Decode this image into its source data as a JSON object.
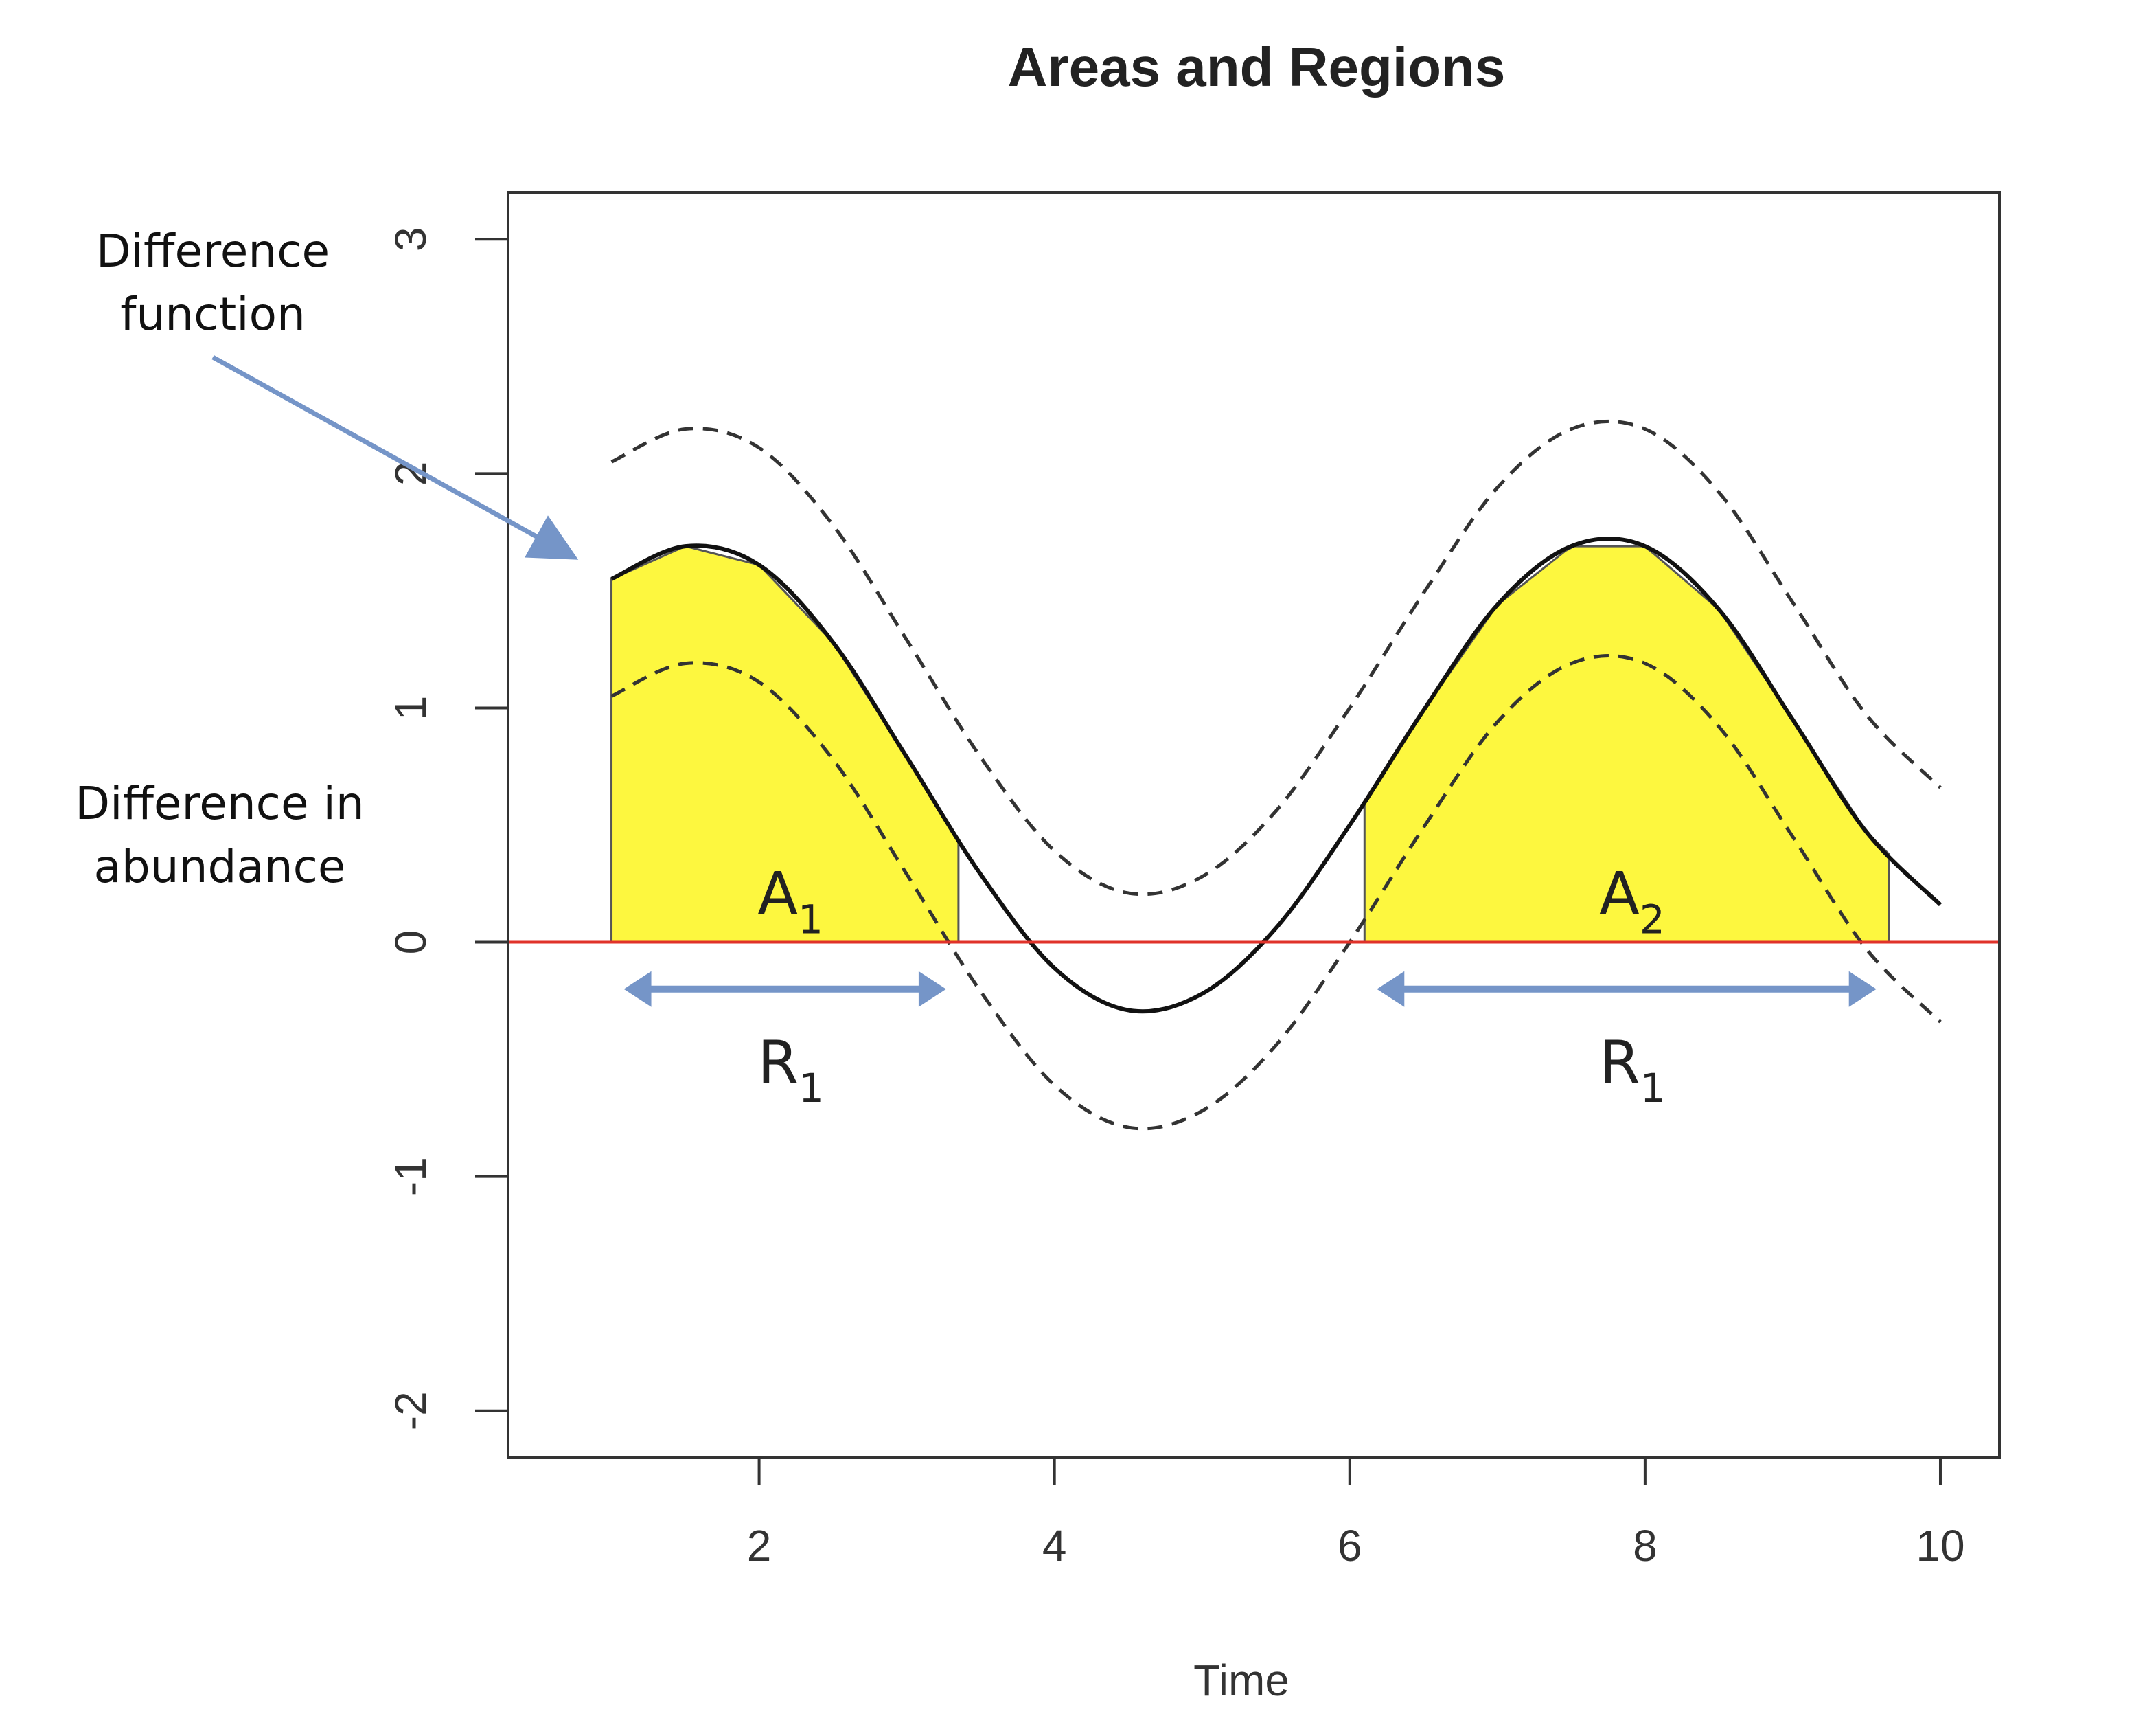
{
  "chart_data": {
    "type": "line",
    "title": "Areas and Regions",
    "xlabel": "Time",
    "ylabel": "",
    "xlim": [
      0.3,
      10.4
    ],
    "ylim": [
      -2.2,
      3.2
    ],
    "xticks": [
      2,
      4,
      6,
      8,
      10
    ],
    "yticks": [
      -2,
      -1,
      0,
      1,
      2,
      3
    ],
    "grid": false,
    "legend": "none",
    "difference_function": {
      "x": [
        1.0,
        1.5,
        2.0,
        2.5,
        3.0,
        3.5,
        4.0,
        4.5,
        5.0,
        5.5,
        6.0,
        6.5,
        7.0,
        7.5,
        8.0,
        8.5,
        9.0,
        9.5,
        10.0
      ],
      "y": [
        1.55,
        1.69,
        1.61,
        1.28,
        0.79,
        0.29,
        -0.11,
        -0.29,
        -0.22,
        0.06,
        0.5,
        0.99,
        1.44,
        1.69,
        1.69,
        1.42,
        0.95,
        0.47,
        0.16
      ]
    },
    "upper_band": {
      "x": [
        1.0,
        1.5,
        2.0,
        2.5,
        3.0,
        3.5,
        4.0,
        4.5,
        5.0,
        5.5,
        6.0,
        6.5,
        7.0,
        7.5,
        8.0,
        8.5,
        9.0,
        9.5,
        10.0
      ],
      "y": [
        2.05,
        2.19,
        2.11,
        1.78,
        1.29,
        0.79,
        0.39,
        0.21,
        0.28,
        0.56,
        1.0,
        1.49,
        1.94,
        2.19,
        2.19,
        1.92,
        1.45,
        0.97,
        0.66
      ]
    },
    "lower_band": {
      "x": [
        1.0,
        1.5,
        2.0,
        2.5,
        3.0,
        3.5,
        4.0,
        4.5,
        5.0,
        5.5,
        6.0,
        6.5,
        7.0,
        7.5,
        8.0,
        8.5,
        9.0,
        9.5,
        10.0
      ],
      "y": [
        1.05,
        1.19,
        1.11,
        0.78,
        0.29,
        -0.21,
        -0.61,
        -0.79,
        -0.72,
        -0.44,
        0.0,
        0.49,
        0.94,
        1.19,
        1.19,
        0.92,
        0.45,
        -0.03,
        -0.34
      ]
    },
    "reference_line": {
      "y": 0,
      "color": "#e0322a"
    },
    "regions": [
      {
        "x_start": 1.0,
        "x_end": 3.35,
        "area_label": "A",
        "area_sub": "1",
        "range_label": "R",
        "range_sub": "1"
      },
      {
        "x_start": 6.1,
        "x_end": 9.65,
        "area_label": "A",
        "area_sub": "2",
        "range_label": "R",
        "range_sub": "1"
      }
    ],
    "annotations": {
      "difference_function": [
        "Difference",
        "function"
      ],
      "difference_in_abundance": [
        "Difference in",
        "abundance"
      ]
    },
    "colors": {
      "fill": "#fdf73f",
      "line": "#111111",
      "band": "#333333",
      "arrow": "#7595c8",
      "zero_line": "#e0322a"
    }
  }
}
